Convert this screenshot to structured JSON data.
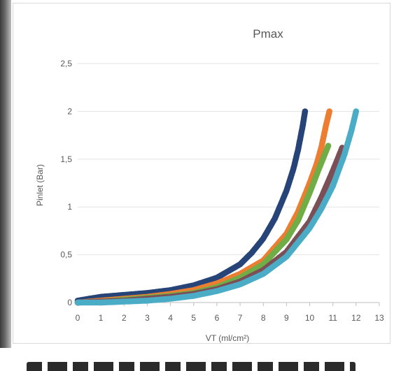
{
  "chart_data": {
    "type": "scatter",
    "title": "Pmax",
    "xlabel": "VT (ml/cm²)",
    "ylabel": "Pinlet (Bar)",
    "xlim": [
      0,
      13
    ],
    "ylim": [
      0,
      2.5
    ],
    "x_ticks": [
      "0",
      "1",
      "2",
      "3",
      "4",
      "5",
      "6",
      "7",
      "8",
      "9",
      "10",
      "11",
      "12",
      "13"
    ],
    "y_ticks": [
      "0",
      "0,5",
      "1",
      "1,5",
      "2",
      "2,5"
    ],
    "grid": "horizontal",
    "legend": "none",
    "series": [
      {
        "color": "#264478",
        "points": [
          [
            0,
            0.02
          ],
          [
            1,
            0.06
          ],
          [
            2,
            0.08
          ],
          [
            3,
            0.1
          ],
          [
            4,
            0.13
          ],
          [
            5,
            0.18
          ],
          [
            6,
            0.26
          ],
          [
            7,
            0.4
          ],
          [
            7.5,
            0.52
          ],
          [
            8,
            0.67
          ],
          [
            8.5,
            0.88
          ],
          [
            9,
            1.17
          ],
          [
            9.3,
            1.4
          ],
          [
            9.5,
            1.6
          ],
          [
            9.7,
            1.85
          ],
          [
            9.8,
            2.0
          ]
        ]
      },
      {
        "color": "#ED7D31",
        "points": [
          [
            0,
            0.0
          ],
          [
            1,
            0.02
          ],
          [
            2,
            0.04
          ],
          [
            3,
            0.06
          ],
          [
            4,
            0.09
          ],
          [
            5,
            0.13
          ],
          [
            6,
            0.2
          ],
          [
            7,
            0.3
          ],
          [
            8,
            0.44
          ],
          [
            9,
            0.72
          ],
          [
            9.5,
            0.95
          ],
          [
            10,
            1.25
          ],
          [
            10.3,
            1.45
          ],
          [
            10.5,
            1.62
          ],
          [
            10.7,
            1.85
          ],
          [
            10.85,
            2.0
          ]
        ]
      },
      {
        "color": "#70AD47",
        "points": [
          [
            0,
            0.0
          ],
          [
            1,
            0.01
          ],
          [
            2,
            0.03
          ],
          [
            3,
            0.05
          ],
          [
            4,
            0.07
          ],
          [
            5,
            0.1
          ],
          [
            6,
            0.16
          ],
          [
            7,
            0.26
          ],
          [
            8,
            0.4
          ],
          [
            9,
            0.66
          ],
          [
            9.5,
            0.86
          ],
          [
            10,
            1.15
          ],
          [
            10.4,
            1.4
          ],
          [
            10.6,
            1.52
          ],
          [
            10.8,
            1.64
          ]
        ]
      },
      {
        "color": "#7C4F57",
        "points": [
          [
            0,
            0.0
          ],
          [
            1,
            0.01
          ],
          [
            2,
            0.02
          ],
          [
            3,
            0.04
          ],
          [
            4,
            0.06
          ],
          [
            5,
            0.09
          ],
          [
            6,
            0.14
          ],
          [
            7,
            0.22
          ],
          [
            8,
            0.34
          ],
          [
            9,
            0.53
          ],
          [
            10,
            0.85
          ],
          [
            10.5,
            1.1
          ],
          [
            11,
            1.38
          ],
          [
            11.2,
            1.5
          ],
          [
            11.4,
            1.62
          ]
        ]
      },
      {
        "color": "#4BACC6",
        "points": [
          [
            0,
            0.0
          ],
          [
            1,
            0.0
          ],
          [
            2,
            0.01
          ],
          [
            3,
            0.02
          ],
          [
            4,
            0.04
          ],
          [
            5,
            0.07
          ],
          [
            6,
            0.12
          ],
          [
            7,
            0.19
          ],
          [
            8,
            0.3
          ],
          [
            9,
            0.48
          ],
          [
            10,
            0.78
          ],
          [
            10.5,
            0.98
          ],
          [
            11,
            1.22
          ],
          [
            11.5,
            1.55
          ],
          [
            11.8,
            1.8
          ],
          [
            12.0,
            2.0
          ]
        ]
      }
    ]
  }
}
